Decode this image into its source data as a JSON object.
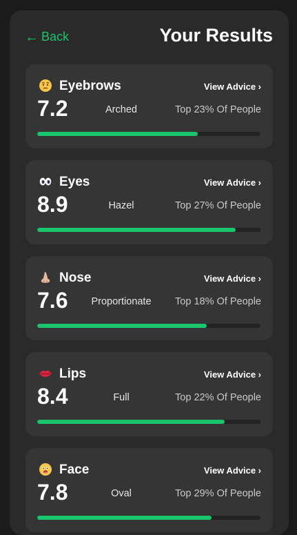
{
  "header": {
    "back_label": "Back",
    "title": "Your Results"
  },
  "colors": {
    "accent": "#19c46c",
    "background": "#1b1b1b",
    "panel": "#2a2a2a",
    "card": "#353535"
  },
  "cards": [
    {
      "name": "Eyebrows",
      "icon": "thinking-face-icon",
      "advice_label": "View Advice ›",
      "score": "7.2",
      "trait": "Arched",
      "percentile": "Top 23% Of People",
      "progress": 0.72
    },
    {
      "name": "Eyes",
      "icon": "eyes-icon",
      "advice_label": "View Advice ›",
      "score": "8.9",
      "trait": "Hazel",
      "percentile": "Top 27% Of People",
      "progress": 0.89
    },
    {
      "name": "Nose",
      "icon": "nose-icon",
      "advice_label": "View Advice ›",
      "score": "7.6",
      "trait": "Proportionate",
      "percentile": "Top 18% Of People",
      "progress": 0.76
    },
    {
      "name": "Lips",
      "icon": "lips-icon",
      "advice_label": "View Advice ›",
      "score": "8.4",
      "trait": "Full",
      "percentile": "Top 22% Of People",
      "progress": 0.84
    },
    {
      "name": "Face",
      "icon": "face-icon",
      "advice_label": "View Advice ›",
      "score": "7.8",
      "trait": "Oval",
      "percentile": "Top 29% Of People",
      "progress": 0.78
    }
  ]
}
